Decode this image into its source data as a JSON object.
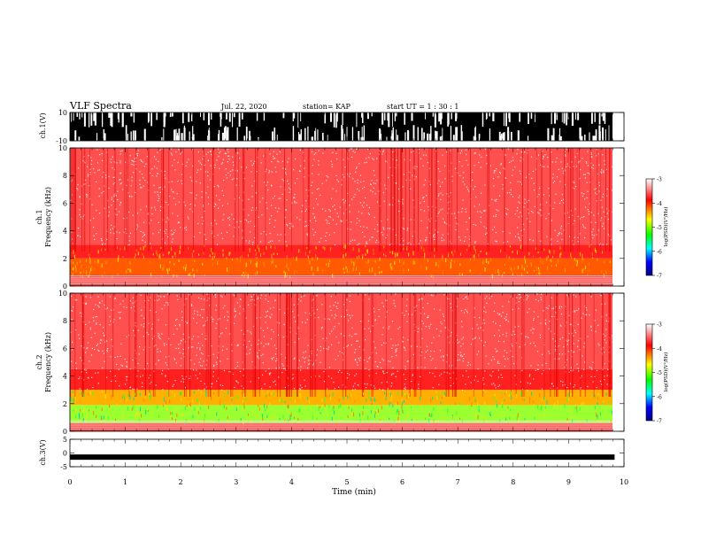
{
  "header": {
    "title": "VLF Spectra",
    "date": "Jul. 22, 2020",
    "station": "station= KAP",
    "start": "start UT =  1 : 30 : 1"
  },
  "chart_data": [
    {
      "type": "line",
      "panel": "ch1-waveform",
      "ylabel": "ch.1(V)",
      "ylim": [
        -10,
        10
      ],
      "yticks": [
        "10",
        "-10"
      ],
      "xlim": [
        0,
        10
      ],
      "note_data": "dense noise waveform, saturated between about -10 and 10 V over 0-9.83 min",
      "data_end_min": 9.83
    },
    {
      "type": "heatmap",
      "panel": "ch1-spectrogram",
      "ylabel": "ch.1 Frequency (kHz)",
      "ylim": [
        0,
        10
      ],
      "yticks": [
        "0",
        "2",
        "4",
        "6",
        "8",
        "10"
      ],
      "xlim": [
        0,
        10
      ],
      "data_end_min": 9.83,
      "bands_khz": [
        {
          "from": 0.0,
          "to": 0.8,
          "level": "red-hatched"
        },
        {
          "from": 0.8,
          "to": 2.0,
          "level": "orange"
        },
        {
          "from": 2.0,
          "to": 3.0,
          "level": "red"
        },
        {
          "from": 3.0,
          "to": 10.0,
          "level": "speckled-red"
        }
      ],
      "colorbar": {
        "label": "log(PSD)(V²/Hz)",
        "range": [
          -7,
          -3
        ],
        "ticks": [
          "-3",
          "-4",
          "-5",
          "-6",
          "-7"
        ],
        "colors": [
          "#ffffff",
          "#ff0000",
          "#ffff00",
          "#00ff00",
          "#00ffff",
          "#0000ff",
          "#000080"
        ]
      }
    },
    {
      "type": "heatmap",
      "panel": "ch2-spectrogram",
      "ylabel": "ch.2 Frequency (kHz)",
      "ylim": [
        0,
        10
      ],
      "yticks": [
        "0",
        "2",
        "4",
        "6",
        "8",
        "10"
      ],
      "xlim": [
        0,
        10
      ],
      "data_end_min": 9.83,
      "bands_khz": [
        {
          "from": 0.0,
          "to": 0.6,
          "level": "red-hatched"
        },
        {
          "from": 0.6,
          "to": 1.9,
          "level": "green-yellow"
        },
        {
          "from": 1.9,
          "to": 3.0,
          "level": "yellow-orange"
        },
        {
          "from": 3.0,
          "to": 4.5,
          "level": "red"
        },
        {
          "from": 4.5,
          "to": 10.0,
          "level": "speckled-red"
        }
      ],
      "colorbar": {
        "label": "log(PSD)(V²/Hz)",
        "range": [
          -7,
          -3
        ],
        "ticks": [
          "-3",
          "-4",
          "-5",
          "-6",
          "-7"
        ],
        "colors": [
          "#ffffff",
          "#ff0000",
          "#ffff00",
          "#00ff00",
          "#00ffff",
          "#0000ff",
          "#000080"
        ]
      }
    },
    {
      "type": "line",
      "panel": "ch3-waveform",
      "ylabel": "ch.3(V)",
      "ylim": [
        -5,
        5
      ],
      "yticks": [
        "5",
        "0",
        "-5"
      ],
      "xlim": [
        0,
        10
      ],
      "xlabel": "Time (min)",
      "xticks": [
        "0",
        "1",
        "2",
        "3",
        "4",
        "5",
        "6",
        "7",
        "8",
        "9",
        "10"
      ],
      "note_data": "thin band of values near -1.5 V over 0-9.83 min",
      "level_v": -1.5,
      "data_end_min": 9.83
    }
  ],
  "colors": {
    "axis": "#000000",
    "spec_red": "#ff2020",
    "spec_orange": "#ff6a00",
    "spec_yellow": "#ffe000",
    "spec_green": "#33ff33"
  }
}
